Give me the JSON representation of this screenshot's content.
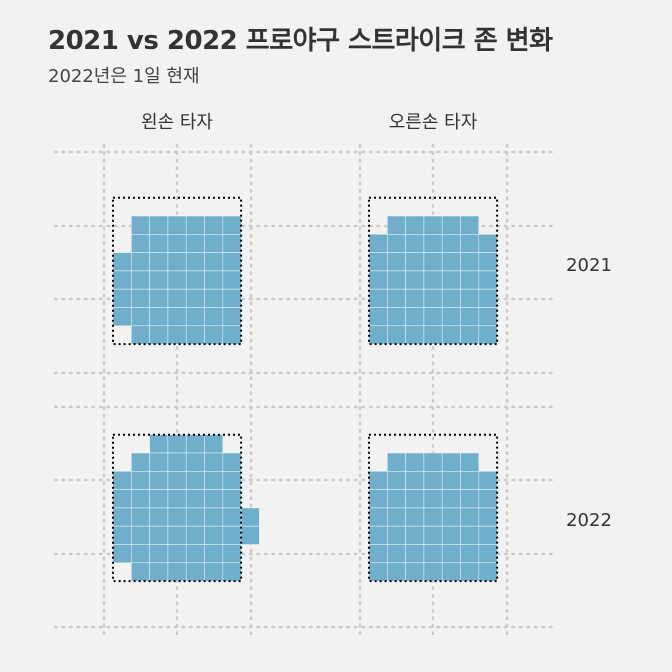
{
  "title": "2021 vs 2022 프로야구 스트라이크 존 변화",
  "subtitle": "2022년은 1일 현재",
  "colors": {
    "cell": "#6fafcb",
    "cell_border": "#ffffff",
    "zone_outline": "#000000",
    "grid": "#cccccc",
    "background": "#f2f2f2"
  },
  "chart_data": {
    "type": "heatmap",
    "columns": [
      "왼손 타자",
      "오른손 타자"
    ],
    "rows": [
      "2021",
      "2022"
    ],
    "grid_on": true,
    "cell_unit": "1 grid cell (≈ 1/7 of rulebook zone width)",
    "rulebook_zone": {
      "col_start": 0,
      "col_end": 7,
      "row_start": 0,
      "row_end": 8
    },
    "panels": [
      {
        "column": "왼손 타자",
        "row": "2021",
        "zone_rows": [
          [
            1,
            7
          ],
          [
            1,
            7
          ],
          [
            0,
            7
          ],
          [
            0,
            7
          ],
          [
            0,
            7
          ],
          [
            0,
            7
          ],
          [
            1,
            7
          ]
        ]
      },
      {
        "column": "오른손 타자",
        "row": "2021",
        "zone_rows": [
          [
            1,
            6
          ],
          [
            0,
            7
          ],
          [
            0,
            7
          ],
          [
            0,
            7
          ],
          [
            0,
            7
          ],
          [
            0,
            7
          ],
          [
            0,
            7
          ]
        ]
      },
      {
        "column": "왼손 타자",
        "row": "2022",
        "zone_rows": [
          [
            2,
            6
          ],
          [
            1,
            7
          ],
          [
            0,
            7
          ],
          [
            0,
            7
          ],
          [
            0,
            8
          ],
          [
            0,
            8
          ],
          [
            0,
            7
          ],
          [
            1,
            7
          ]
        ]
      },
      {
        "column": "오른손 타자",
        "row": "2022",
        "zone_rows": [
          [
            1,
            6
          ],
          [
            0,
            7
          ],
          [
            0,
            7
          ],
          [
            0,
            7
          ],
          [
            0,
            7
          ],
          [
            0,
            7
          ],
          [
            0,
            7
          ]
        ]
      }
    ]
  }
}
